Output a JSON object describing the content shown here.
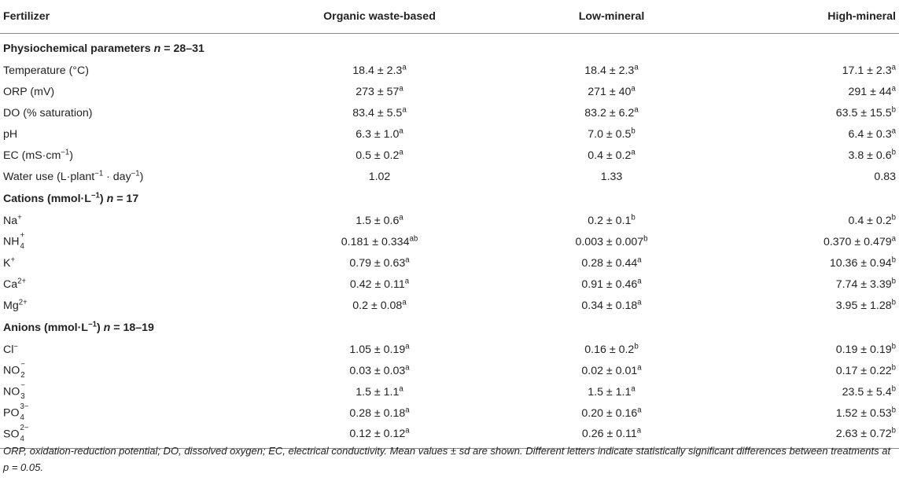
{
  "table": {
    "headers": [
      "Fertilizer",
      "Organic waste-based",
      "Low-mineral",
      "High-mineral"
    ],
    "sections": [
      {
        "title_prefix": "Physiochemical parameters ",
        "title_n": "n",
        "title_suffix": " = 28–31",
        "rows": [
          {
            "label": "Temperature (°C)",
            "values": [
              {
                "v": "18.4 ± 2.3",
                "l": "a"
              },
              {
                "v": "18.4 ± 2.3",
                "l": "a"
              },
              {
                "v": "17.1 ± 2.3",
                "l": "a"
              }
            ]
          },
          {
            "label": "ORP (mV)",
            "values": [
              {
                "v": "273 ± 57",
                "l": "a"
              },
              {
                "v": "271 ± 40",
                "l": "a"
              },
              {
                "v": "291 ± 44",
                "l": "a"
              }
            ]
          },
          {
            "label": "DO (% saturation)",
            "values": [
              {
                "v": "83.4 ± 5.5",
                "l": "a"
              },
              {
                "v": "83.2 ± 6.2",
                "l": "a"
              },
              {
                "v": "63.5 ± 15.5",
                "l": "b"
              }
            ]
          },
          {
            "label": "pH",
            "values": [
              {
                "v": "6.3 ± 1.0",
                "l": "a"
              },
              {
                "v": "7.0 ± 0.5",
                "l": "b"
              },
              {
                "v": "6.4 ± 0.3",
                "l": "a"
              }
            ]
          },
          {
            "label_main": "EC (mS·cm",
            "label_sup": "−1",
            "label_end": ")",
            "values": [
              {
                "v": "0.5 ± 0.2",
                "l": "a"
              },
              {
                "v": "0.4 ± 0.2",
                "l": "a"
              },
              {
                "v": "3.8 ± 0.6",
                "l": "b"
              }
            ]
          },
          {
            "label_main": "Water use (L·plant",
            "label_sup": "−1",
            "label_mid": " · day",
            "label_sup2": "−1",
            "label_end": ")",
            "values": [
              {
                "v": "1.02",
                "l": ""
              },
              {
                "v": "1.33",
                "l": ""
              },
              {
                "v": "0.83",
                "l": ""
              }
            ]
          }
        ]
      },
      {
        "title_prefix": "Cations (mmol·L",
        "title_sup": "−1",
        "title_mid": ") ",
        "title_n": "n",
        "title_suffix": " = 17",
        "rows": [
          {
            "label_main": "Na",
            "label_sup": "+",
            "values": [
              {
                "v": "1.5 ± 0.6",
                "l": "a"
              },
              {
                "v": "0.2 ± 0.1",
                "l": "b"
              },
              {
                "v": "0.4 ± 0.2",
                "l": "b"
              }
            ]
          },
          {
            "label_main": "NH",
            "label_sub": "4",
            "label_sup": "+",
            "values": [
              {
                "v": "0.181 ± 0.334",
                "l": "ab"
              },
              {
                "v": "0.003 ± 0.007",
                "l": "b"
              },
              {
                "v": "0.370 ± 0.479",
                "l": "a"
              }
            ]
          },
          {
            "label_main": "K",
            "label_sup": "+",
            "values": [
              {
                "v": "0.79 ± 0.63",
                "l": "a"
              },
              {
                "v": "0.28 ± 0.44",
                "l": "a"
              },
              {
                "v": "10.36 ± 0.94",
                "l": "b"
              }
            ]
          },
          {
            "label_main": "Ca",
            "label_sup": "2+",
            "values": [
              {
                "v": "0.42 ± 0.11",
                "l": "a"
              },
              {
                "v": "0.91 ± 0.46",
                "l": "a"
              },
              {
                "v": "7.74 ± 3.39",
                "l": "b"
              }
            ]
          },
          {
            "label_main": "Mg",
            "label_sup": "2+",
            "values": [
              {
                "v": "0.2 ± 0.08",
                "l": "a"
              },
              {
                "v": "0.34 ± 0.18",
                "l": "a"
              },
              {
                "v": "3.95 ± 1.28",
                "l": "b"
              }
            ]
          }
        ]
      },
      {
        "title_prefix": "Anions (mmol·L",
        "title_sup": "−1",
        "title_mid": ") ",
        "title_n": "n",
        "title_suffix": " = 18–19",
        "rows": [
          {
            "label_main": "Cl",
            "label_sup": "−",
            "values": [
              {
                "v": "1.05 ± 0.19",
                "l": "a"
              },
              {
                "v": "0.16 ± 0.2",
                "l": "b"
              },
              {
                "v": "0.19 ± 0.19",
                "l": "b"
              }
            ]
          },
          {
            "label_main": "NO",
            "label_sub": "2",
            "label_sup": "−",
            "values": [
              {
                "v": "0.03 ± 0.03",
                "l": "a"
              },
              {
                "v": "0.02 ± 0.01",
                "l": "a"
              },
              {
                "v": "0.17 ± 0.22",
                "l": "b"
              }
            ]
          },
          {
            "label_main": "NO",
            "label_sub": "3",
            "label_sup": "−",
            "values": [
              {
                "v": "1.5 ± 1.1",
                "l": "a"
              },
              {
                "v": "1.5 ± 1.1",
                "l": "a"
              },
              {
                "v": "23.5 ± 5.4",
                "l": "b"
              }
            ]
          },
          {
            "label_main": "PO",
            "label_sub": "4",
            "label_sup": "3−",
            "values": [
              {
                "v": "0.28 ± 0.18",
                "l": "a"
              },
              {
                "v": "0.20 ± 0.16",
                "l": "a"
              },
              {
                "v": "1.52 ± 0.53",
                "l": "b"
              }
            ]
          },
          {
            "label_main": "SO",
            "label_sub": "4",
            "label_sup": "2−",
            "values": [
              {
                "v": "0.12 ± 0.12",
                "l": "a"
              },
              {
                "v": "0.26 ± 0.11",
                "l": "a"
              },
              {
                "v": "2.63 ± 0.72",
                "l": "b"
              }
            ]
          }
        ]
      }
    ]
  },
  "footnote": {
    "text_before_p": "ORP, oxidation-reduction potential; DO, dissolved oxygen; EC, electrical conductivity. Mean values ± sd are shown. Different letters indicate statistically significant differences between treatments at ",
    "p_symbol": "p",
    "text_after_p": " = 0.05."
  }
}
